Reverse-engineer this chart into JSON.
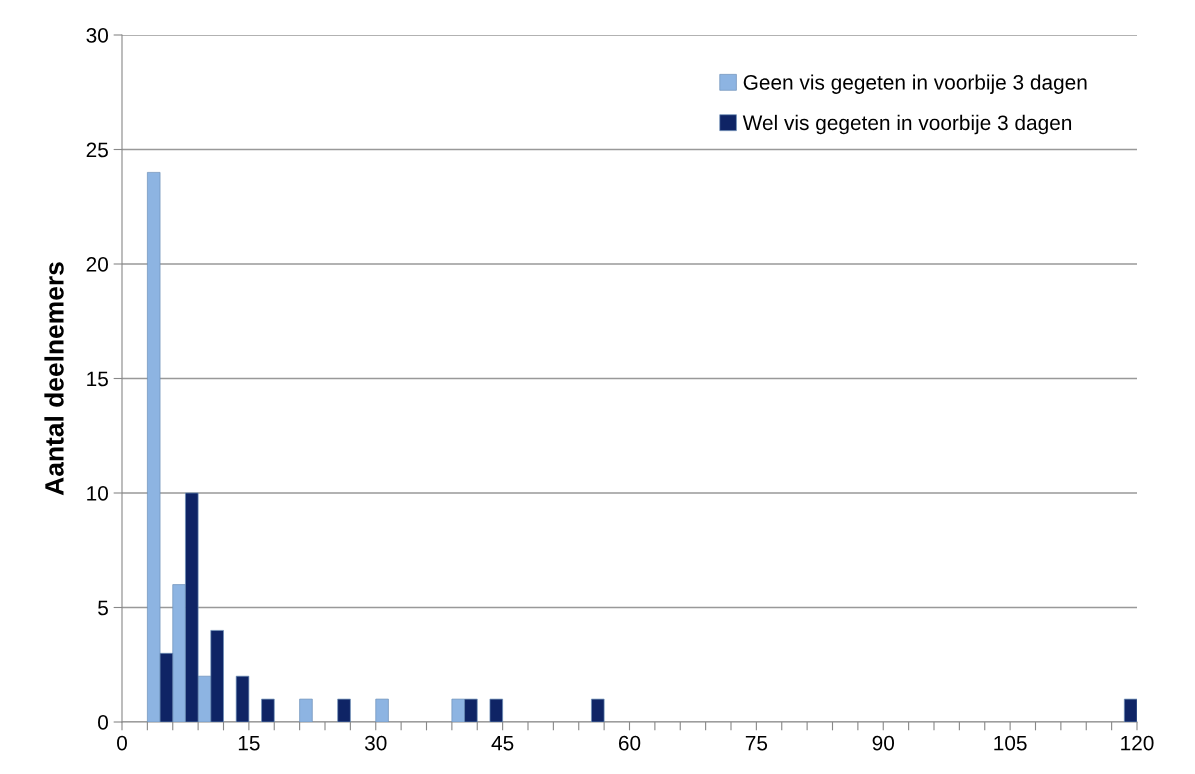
{
  "chart_data": {
    "type": "bar",
    "ylabel": "Aantal deelnemers",
    "series": [
      {
        "name": "Geen vis gegeten in voorbije 3 dagen",
        "color": "#8db4e2",
        "x": [
          4.5,
          7.5,
          10.5,
          22.5,
          31.5,
          40.5
        ],
        "values": [
          24,
          6,
          2,
          1,
          1,
          1
        ]
      },
      {
        "name": "Wel vis gegeten in voorbije 3 dagen",
        "color": "#0f2465",
        "x": [
          4.5,
          7.5,
          10.5,
          13.5,
          16.5,
          25.5,
          40.5,
          43.5,
          55.5,
          118.5
        ],
        "values": [
          3,
          10,
          4,
          2,
          1,
          1,
          1,
          1,
          1,
          1
        ]
      }
    ],
    "xlim": [
      0,
      120
    ],
    "xticks": [
      0,
      {
        "value": 3,
        "label": null
      },
      {
        "value": 6,
        "label": null
      },
      {
        "value": 9,
        "label": null
      },
      {
        "value": 12,
        "label": null
      },
      15,
      {
        "value": 18,
        "label": null
      },
      {
        "value": 21,
        "label": null
      },
      {
        "value": 24,
        "label": null
      },
      {
        "value": 27,
        "label": null
      },
      30,
      {
        "value": 33,
        "label": null
      },
      {
        "value": 36,
        "label": null
      },
      {
        "value": 39,
        "label": null
      },
      {
        "value": 42,
        "label": null
      },
      45,
      {
        "value": 48,
        "label": null
      },
      {
        "value": 51,
        "label": null
      },
      {
        "value": 54,
        "label": null
      },
      {
        "value": 57,
        "label": null
      },
      60,
      {
        "value": 63,
        "label": null
      },
      {
        "value": 66,
        "label": null
      },
      {
        "value": 69,
        "label": null
      },
      {
        "value": 72,
        "label": null
      },
      75,
      {
        "value": 78,
        "label": null
      },
      {
        "value": 81,
        "label": null
      },
      {
        "value": 84,
        "label": null
      },
      {
        "value": 87,
        "label": null
      },
      90,
      {
        "value": 93,
        "label": null
      },
      {
        "value": 96,
        "label": null
      },
      {
        "value": 99,
        "label": null
      },
      {
        "value": 102,
        "label": null
      },
      105,
      {
        "value": 108,
        "label": null
      },
      {
        "value": 111,
        "label": null
      },
      {
        "value": 114,
        "label": null
      },
      {
        "value": 117,
        "label": null
      },
      120
    ],
    "ylim": [
      0,
      30
    ],
    "yticks": [
      0,
      5,
      10,
      15,
      20,
      25,
      30
    ],
    "grid": "y",
    "legend": "top right"
  }
}
